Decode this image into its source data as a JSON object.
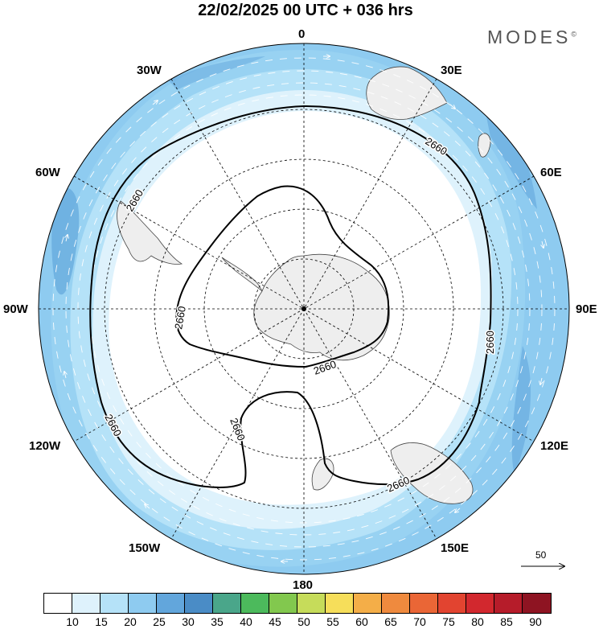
{
  "title": "22/02/2025  00 UTC  + 036 hrs",
  "brand": "MODES",
  "brand_mark": "©",
  "longitude_labels": {
    "n": "0",
    "nne": "30E",
    "ene": "60E",
    "e": "90E",
    "ese": "120E",
    "sse": "150E",
    "s": "180",
    "ssw": "150W",
    "wsw": "120W",
    "w": "90W",
    "wnw": "60W",
    "nnw": "30W"
  },
  "contour_label": "2660",
  "vector_reference": {
    "label": "50"
  },
  "colorbar": {
    "colors": [
      "#ffffff",
      "#def2fc",
      "#b5e2f8",
      "#8ecbf0",
      "#62a6dc",
      "#4a8cc6",
      "#4aa68a",
      "#4cba5c",
      "#82c84e",
      "#c6dc5a",
      "#f6de5a",
      "#f4ae48",
      "#ef8a3e",
      "#ea6636",
      "#e24430",
      "#d2282e",
      "#b61c2a",
      "#8e1422"
    ],
    "ticks": [
      "10",
      "15",
      "20",
      "25",
      "30",
      "35",
      "40",
      "45",
      "50",
      "55",
      "60",
      "65",
      "70",
      "75",
      "80",
      "85",
      "90"
    ]
  }
}
